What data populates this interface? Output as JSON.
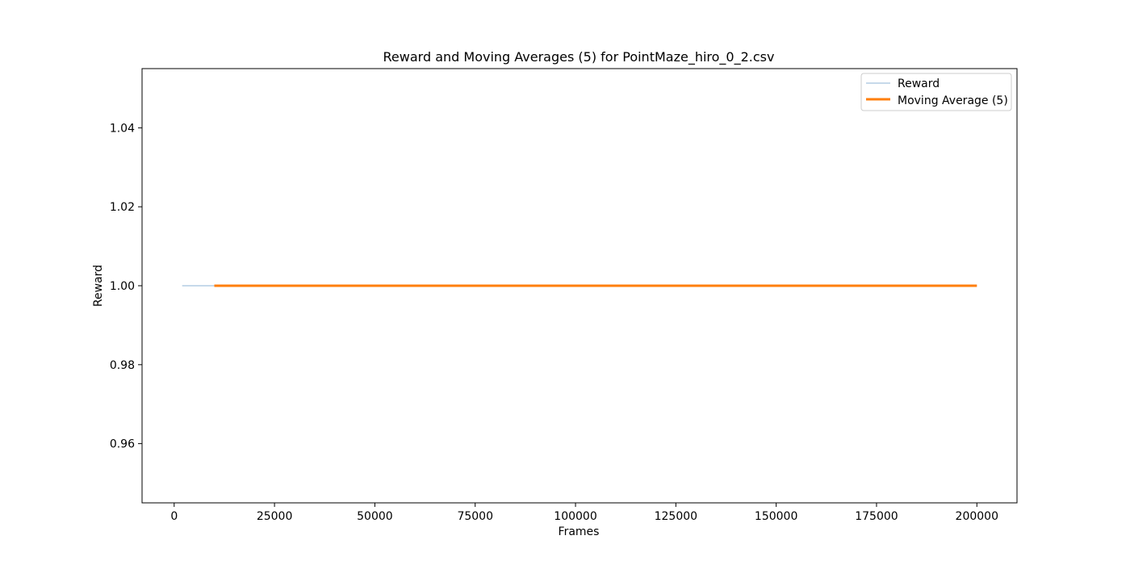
{
  "chart_data": {
    "type": "line",
    "title": "Reward and Moving Averages (5) for PointMaze_hiro_0_2.csv",
    "xlabel": "Frames",
    "ylabel": "Reward",
    "xlim": [
      -8000,
      210000
    ],
    "ylim": [
      0.945,
      1.055
    ],
    "xticks": [
      0,
      25000,
      50000,
      75000,
      100000,
      125000,
      150000,
      175000,
      200000
    ],
    "yticks": [
      0.96,
      0.98,
      1.0,
      1.02,
      1.04
    ],
    "ytick_labels": [
      "0.96",
      "0.98",
      "1.00",
      "1.02",
      "1.04"
    ],
    "grid": false,
    "legend_position": "top-right",
    "series": [
      {
        "name": "Reward",
        "color": "#c6d9ea",
        "x": [
          2000,
          200000
        ],
        "y": [
          1.0,
          1.0
        ]
      },
      {
        "name": "Moving Average (5)",
        "color": "#ff7f0e",
        "x": [
          10000,
          200000
        ],
        "y": [
          1.0,
          1.0
        ]
      }
    ]
  }
}
